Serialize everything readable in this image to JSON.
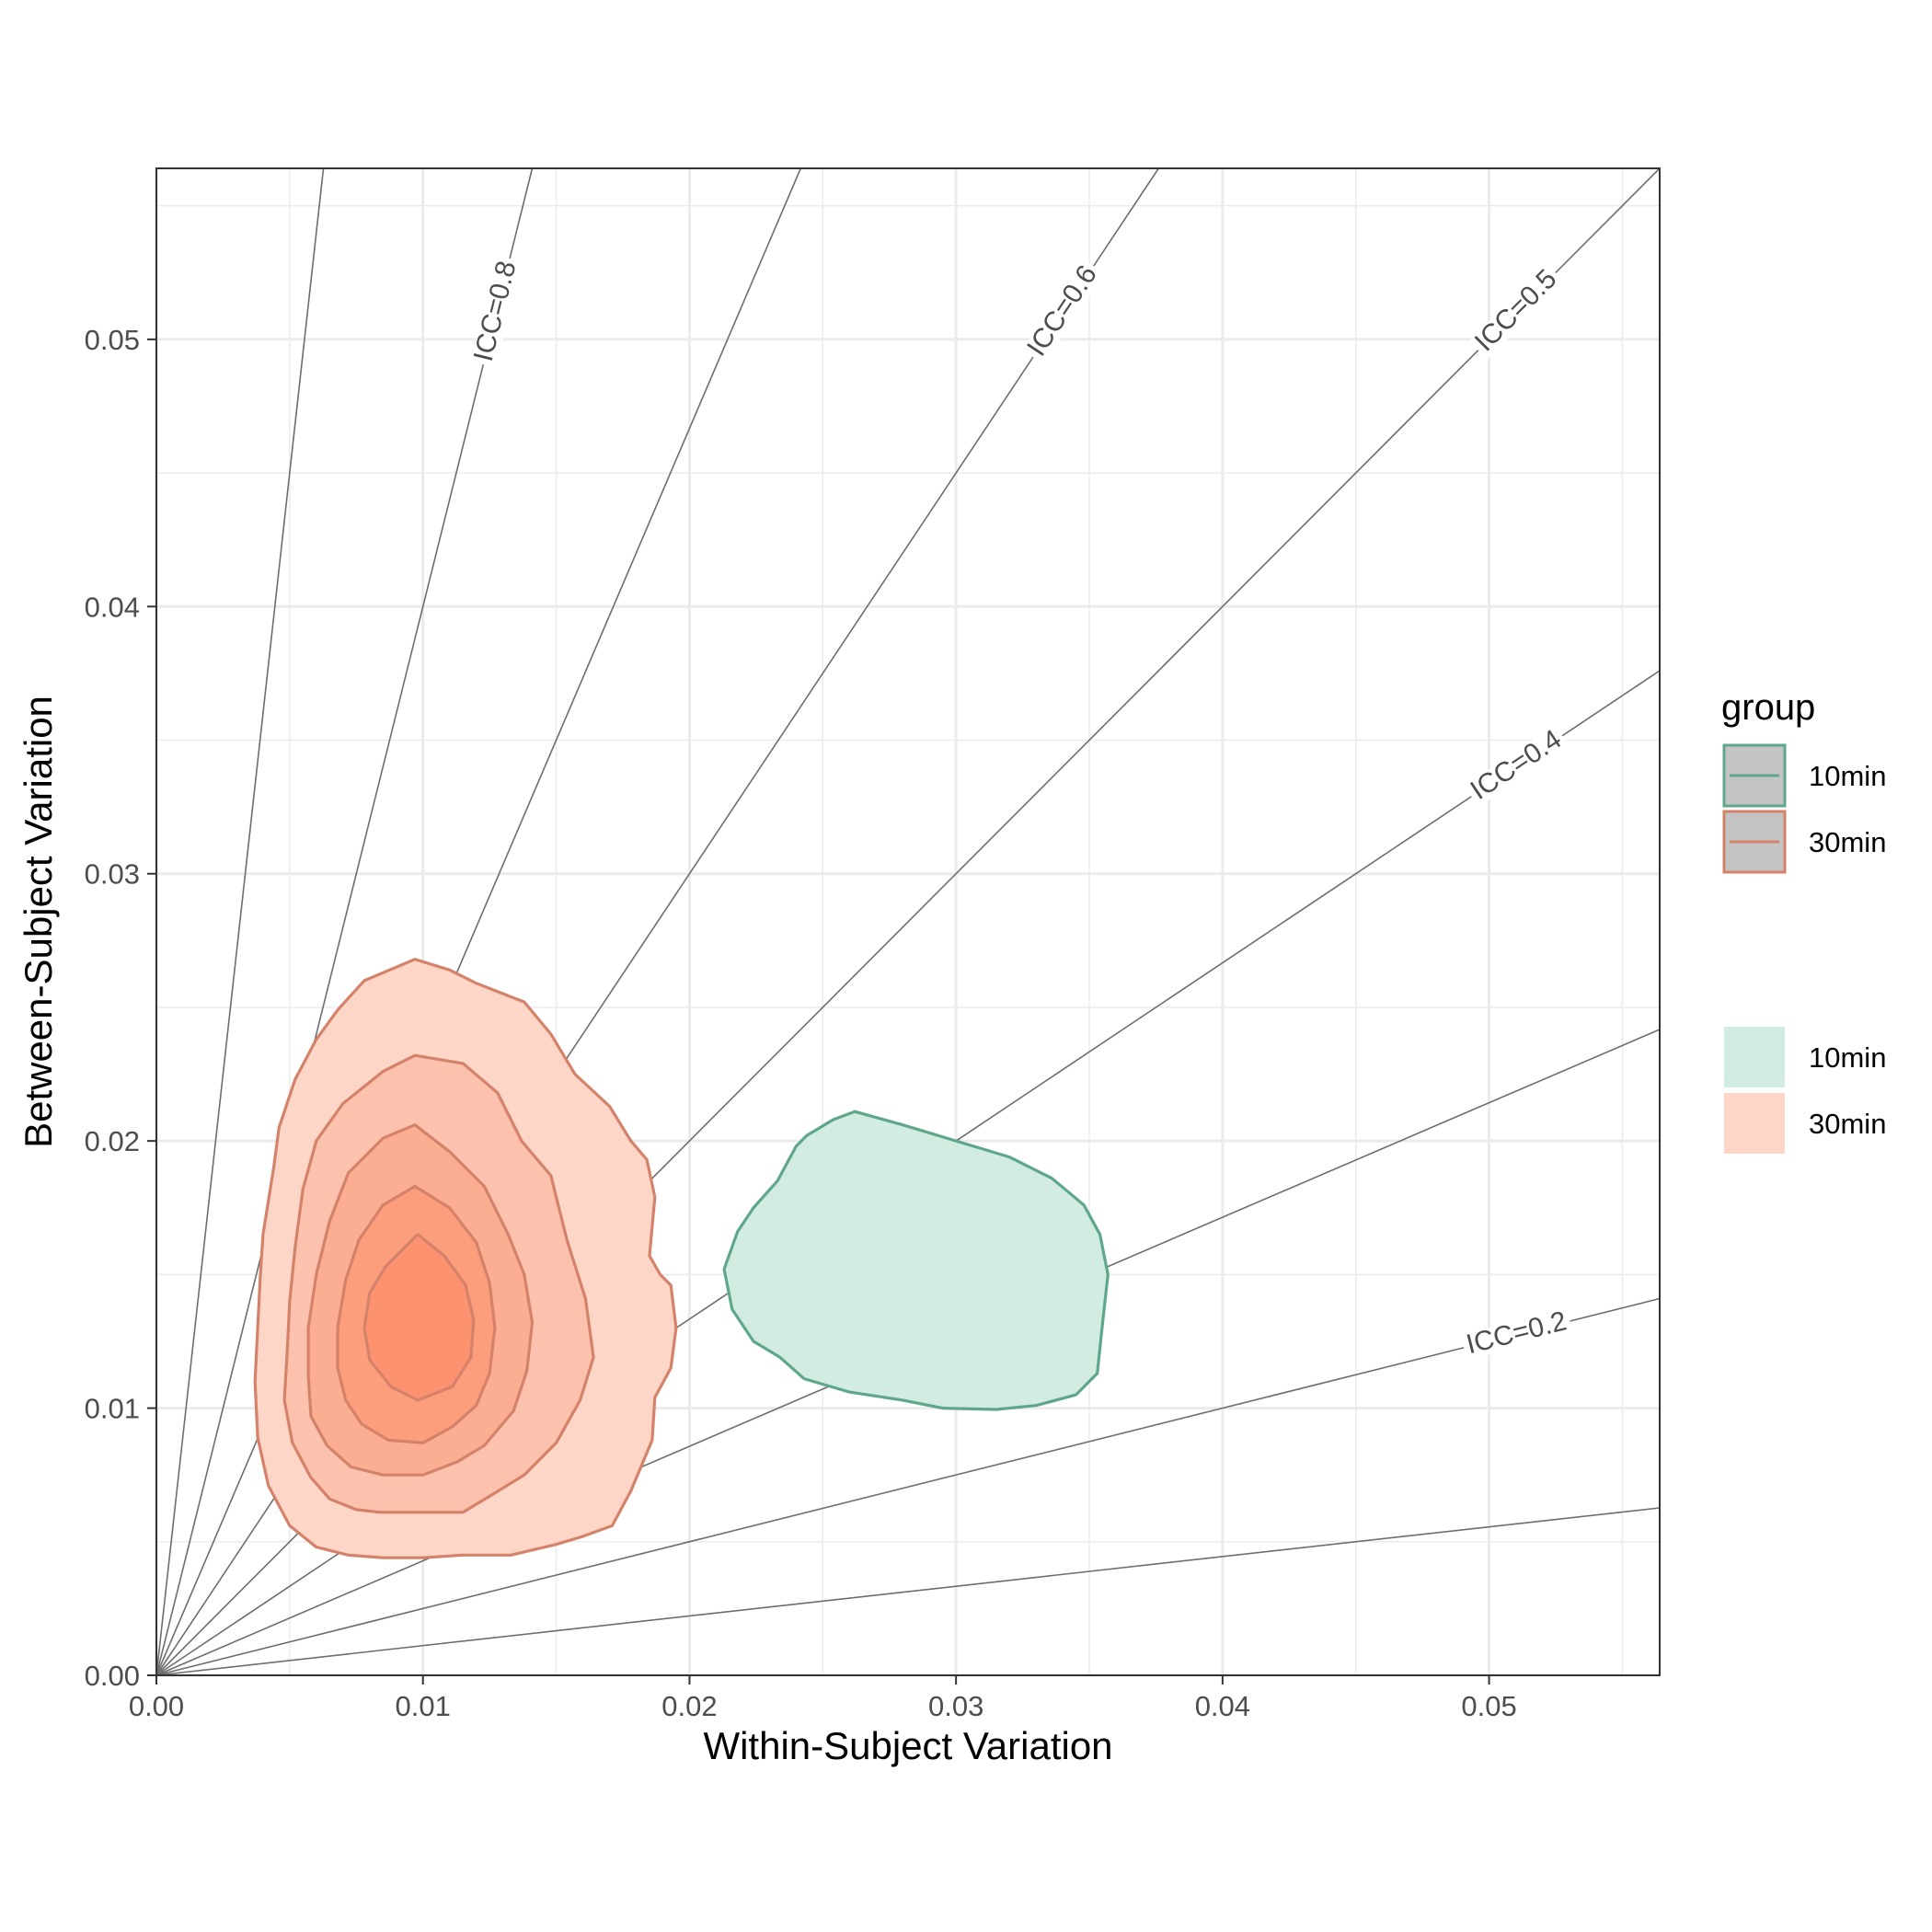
{
  "chart_data": {
    "type": "contour",
    "xlabel": "Within-Subject Variation",
    "ylabel": "Between-Subject Variation",
    "xlim": [
      0,
      0.0564
    ],
    "ylim": [
      0,
      0.0564
    ],
    "x_ticks": [
      "0.00",
      "0.01",
      "0.02",
      "0.03",
      "0.04",
      "0.05"
    ],
    "y_ticks": [
      "0.00",
      "0.01",
      "0.02",
      "0.03",
      "0.04",
      "0.05"
    ],
    "x_tick_values": [
      0,
      0.01,
      0.02,
      0.03,
      0.04,
      0.05
    ],
    "y_tick_values": [
      0,
      0.01,
      0.02,
      0.03,
      0.04,
      0.05
    ],
    "grid": true,
    "icc_lines": [
      {
        "icc": 0.1,
        "label": ""
      },
      {
        "icc": 0.2,
        "label": "ICC=0.2"
      },
      {
        "icc": 0.3,
        "label": ""
      },
      {
        "icc": 0.4,
        "label": "ICC=0.4"
      },
      {
        "icc": 0.5,
        "label": "ICC=0.5"
      },
      {
        "icc": 0.6,
        "label": "ICC=0.6"
      },
      {
        "icc": 0.7,
        "label": ""
      },
      {
        "icc": 0.8,
        "label": "ICC=0.8"
      },
      {
        "icc": 0.9,
        "label": ""
      }
    ],
    "legend": {
      "title": "group",
      "position": "right",
      "line_entries": [
        {
          "label": "10min",
          "color": "#5fa78a"
        },
        {
          "label": "30min",
          "color": "#d5826a"
        }
      ],
      "fill_entries": [
        {
          "label": "10min",
          "color": "#d2ece2"
        },
        {
          "label": "30min",
          "color": "#fdd6c8"
        }
      ]
    },
    "series": [
      {
        "name": "10min",
        "stroke": "#5fa78a",
        "fill": "#d2ece2",
        "levels": [
          {
            "fill": "#d2ece2",
            "points": [
              [
                0.0262,
                0.0211
              ],
              [
                0.028,
                0.0206
              ],
              [
                0.03,
                0.02
              ],
              [
                0.032,
                0.0194
              ],
              [
                0.0336,
                0.0186
              ],
              [
                0.0348,
                0.0176
              ],
              [
                0.0354,
                0.0165
              ],
              [
                0.0357,
                0.015
              ],
              [
                0.0355,
                0.0132
              ],
              [
                0.0353,
                0.0113
              ],
              [
                0.0345,
                0.0105
              ],
              [
                0.033,
                0.0101
              ],
              [
                0.0315,
                0.00995
              ],
              [
                0.0295,
                0.01
              ],
              [
                0.028,
                0.0103
              ],
              [
                0.026,
                0.0106
              ],
              [
                0.0243,
                0.0111
              ],
              [
                0.0234,
                0.0119
              ],
              [
                0.0224,
                0.0125
              ],
              [
                0.0216,
                0.0137
              ],
              [
                0.0213,
                0.0152
              ],
              [
                0.0218,
                0.0166
              ],
              [
                0.0224,
                0.0175
              ],
              [
                0.0233,
                0.0185
              ],
              [
                0.024,
                0.0198
              ],
              [
                0.0244,
                0.0202
              ],
              [
                0.0254,
                0.0208
              ]
            ]
          }
        ]
      },
      {
        "name": "30min",
        "stroke": "#d5826a",
        "fill": "#fdd6c8",
        "levels": [
          {
            "fill": "#fdd6c8",
            "points": [
              [
                0.0097,
                0.0268
              ],
              [
                0.011,
                0.0264
              ],
              [
                0.012,
                0.0259
              ],
              [
                0.0138,
                0.0252
              ],
              [
                0.0148,
                0.024
              ],
              [
                0.0157,
                0.0225
              ],
              [
                0.017,
                0.0213
              ],
              [
                0.0178,
                0.02
              ],
              [
                0.0184,
                0.0193
              ],
              [
                0.0187,
                0.0179
              ],
              [
                0.0185,
                0.0157
              ],
              [
                0.0189,
                0.015
              ],
              [
                0.0193,
                0.0146
              ],
              [
                0.0195,
                0.013
              ],
              [
                0.0193,
                0.0115
              ],
              [
                0.0187,
                0.0104
              ],
              [
                0.0186,
                0.0088
              ],
              [
                0.0178,
                0.0069
              ],
              [
                0.0171,
                0.0056
              ],
              [
                0.016,
                0.0052
              ],
              [
                0.015,
                0.0049
              ],
              [
                0.0133,
                0.0045
              ],
              [
                0.0115,
                0.0045
              ],
              [
                0.01,
                0.0044
              ],
              [
                0.0085,
                0.0044
              ],
              [
                0.0072,
                0.0045
              ],
              [
                0.006,
                0.0048
              ],
              [
                0.005,
                0.0056
              ],
              [
                0.0042,
                0.0071
              ],
              [
                0.0038,
                0.0089
              ],
              [
                0.0037,
                0.011
              ],
              [
                0.0038,
                0.013
              ],
              [
                0.0039,
                0.015
              ],
              [
                0.004,
                0.0165
              ],
              [
                0.0044,
                0.019
              ],
              [
                0.0046,
                0.0205
              ],
              [
                0.0052,
                0.0223
              ],
              [
                0.006,
                0.0238
              ],
              [
                0.0068,
                0.0249
              ],
              [
                0.0078,
                0.026
              ]
            ]
          },
          {
            "fill": "#fcc2ad",
            "points": [
              [
                0.0097,
                0.0232
              ],
              [
                0.0115,
                0.0229
              ],
              [
                0.0128,
                0.0218
              ],
              [
                0.0137,
                0.02
              ],
              [
                0.0148,
                0.0187
              ],
              [
                0.0154,
                0.0163
              ],
              [
                0.0161,
                0.0141
              ],
              [
                0.0164,
                0.0119
              ],
              [
                0.0159,
                0.0103
              ],
              [
                0.015,
                0.0087
              ],
              [
                0.0138,
                0.0075
              ],
              [
                0.0125,
                0.0067
              ],
              [
                0.0115,
                0.0061
              ],
              [
                0.01,
                0.0061
              ],
              [
                0.0084,
                0.0061
              ],
              [
                0.0075,
                0.0062
              ],
              [
                0.0065,
                0.0066
              ],
              [
                0.0058,
                0.0074
              ],
              [
                0.0051,
                0.0087
              ],
              [
                0.0048,
                0.0103
              ],
              [
                0.0049,
                0.012
              ],
              [
                0.005,
                0.014
              ],
              [
                0.0052,
                0.016
              ],
              [
                0.0055,
                0.0182
              ],
              [
                0.006,
                0.02
              ],
              [
                0.007,
                0.0214
              ],
              [
                0.0085,
                0.0226
              ]
            ]
          },
          {
            "fill": "#fcae93",
            "points": [
              [
                0.0097,
                0.0206
              ],
              [
                0.011,
                0.0196
              ],
              [
                0.0123,
                0.0183
              ],
              [
                0.0132,
                0.0165
              ],
              [
                0.0138,
                0.015
              ],
              [
                0.0141,
                0.0132
              ],
              [
                0.0139,
                0.0114
              ],
              [
                0.0134,
                0.0099
              ],
              [
                0.0123,
                0.0086
              ],
              [
                0.0113,
                0.008
              ],
              [
                0.01,
                0.0075
              ],
              [
                0.0085,
                0.0075
              ],
              [
                0.0073,
                0.0078
              ],
              [
                0.0064,
                0.0086
              ],
              [
                0.0058,
                0.0097
              ],
              [
                0.0057,
                0.0112
              ],
              [
                0.0057,
                0.013
              ],
              [
                0.006,
                0.015
              ],
              [
                0.0065,
                0.017
              ],
              [
                0.0072,
                0.0188
              ],
              [
                0.0085,
                0.0201
              ]
            ]
          },
          {
            "fill": "#fc9d7c",
            "points": [
              [
                0.0097,
                0.0183
              ],
              [
                0.011,
                0.0175
              ],
              [
                0.012,
                0.0162
              ],
              [
                0.0125,
                0.0147
              ],
              [
                0.0127,
                0.013
              ],
              [
                0.0125,
                0.0113
              ],
              [
                0.012,
                0.0101
              ],
              [
                0.0111,
                0.0093
              ],
              [
                0.01,
                0.0087
              ],
              [
                0.0087,
                0.0088
              ],
              [
                0.0077,
                0.0094
              ],
              [
                0.0071,
                0.0103
              ],
              [
                0.0068,
                0.0115
              ],
              [
                0.0068,
                0.013
              ],
              [
                0.0071,
                0.0148
              ],
              [
                0.0076,
                0.0163
              ],
              [
                0.0085,
                0.0176
              ]
            ]
          },
          {
            "fill": "#fc9270",
            "points": [
              [
                0.0098,
                0.0165
              ],
              [
                0.0108,
                0.0157
              ],
              [
                0.0116,
                0.0146
              ],
              [
                0.0119,
                0.0133
              ],
              [
                0.0118,
                0.0119
              ],
              [
                0.0111,
                0.0108
              ],
              [
                0.0098,
                0.0103
              ],
              [
                0.0088,
                0.0108
              ],
              [
                0.008,
                0.0118
              ],
              [
                0.0078,
                0.013
              ],
              [
                0.008,
                0.0143
              ],
              [
                0.0086,
                0.0153
              ]
            ]
          }
        ]
      }
    ]
  }
}
